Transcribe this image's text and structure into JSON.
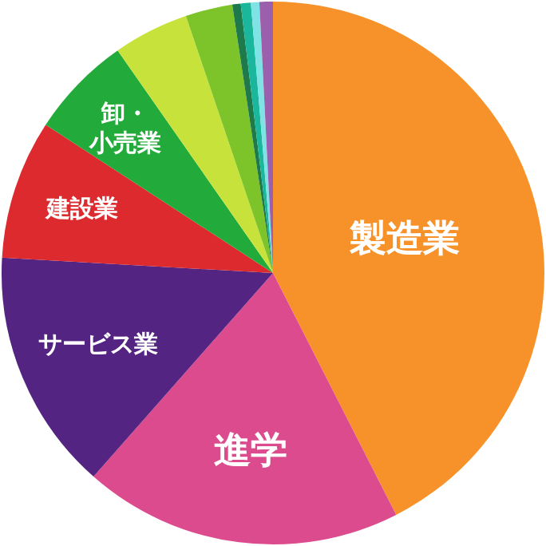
{
  "chart_data": {
    "type": "pie",
    "categories": [
      "製造業",
      "進学",
      "サービス業",
      "建設業",
      "卸・小売業",
      null,
      null,
      null,
      null,
      null,
      null
    ],
    "values": [
      42.5,
      19,
      14.4,
      8.3,
      6.1,
      4.5,
      2.8,
      0.5,
      0.6,
      0.5,
      0.8
    ],
    "colors": [
      "#f7922a",
      "#dc4b8e",
      "#542483",
      "#dc2a2e",
      "#22aa3a",
      "#c8e23c",
      "#7dc42b",
      "#1e7a4a",
      "#1ab79c",
      "#7fe3e6",
      "#9b5fab"
    ],
    "legend": false
  }
}
